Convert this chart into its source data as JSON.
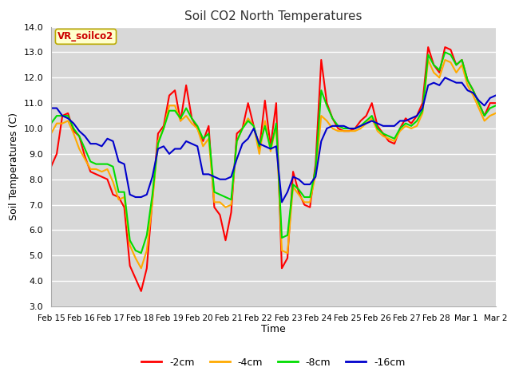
{
  "title": "Soil CO2 North Temperatures",
  "xlabel": "Time",
  "ylabel": "Soil Temperatures (C)",
  "ylim": [
    3.0,
    14.0
  ],
  "yticks": [
    3.0,
    4.0,
    5.0,
    6.0,
    7.0,
    8.0,
    9.0,
    10.0,
    11.0,
    12.0,
    13.0,
    14.0
  ],
  "x_labels": [
    "Feb 15",
    "Feb 16",
    "Feb 17",
    "Feb 18",
    "Feb 19",
    "Feb 20",
    "Feb 21",
    "Feb 22",
    "Feb 23",
    "Feb 24",
    "Feb 25",
    "Feb 26",
    "Feb 27",
    "Feb 28",
    "Mar 1",
    "Mar 2"
  ],
  "colors": {
    "-2cm": "#ff0000",
    "-4cm": "#ffaa00",
    "-8cm": "#00dd00",
    "-16cm": "#0000cc"
  },
  "legend_label": "VR_soilco2",
  "fig_background": "#ffffff",
  "plot_background": "#d8d8d8",
  "grid_color": "#ffffff",
  "line_width": 1.5,
  "series": {
    "-2cm": [
      8.5,
      9.0,
      10.5,
      10.6,
      9.9,
      9.7,
      8.9,
      8.3,
      8.2,
      8.1,
      8.0,
      7.4,
      7.3,
      6.9,
      4.6,
      4.1,
      3.6,
      4.5,
      7.2,
      9.8,
      10.1,
      11.3,
      11.5,
      10.3,
      11.7,
      10.4,
      10.0,
      9.5,
      10.1,
      6.9,
      6.6,
      5.6,
      6.7,
      9.8,
      10.0,
      11.0,
      10.1,
      9.2,
      11.1,
      9.3,
      11.0,
      4.5,
      4.9,
      8.3,
      7.5,
      7.0,
      6.9,
      8.6,
      12.7,
      11.0,
      10.4,
      10.0,
      9.9,
      9.9,
      10.0,
      10.3,
      10.5,
      11.0,
      10.1,
      9.8,
      9.5,
      9.4,
      10.0,
      10.4,
      10.2,
      10.5,
      11.0,
      13.2,
      12.5,
      12.2,
      13.2,
      13.1,
      12.5,
      12.7,
      11.9,
      11.5,
      11.0,
      10.5,
      11.0,
      11.0
    ],
    "-4cm": [
      9.8,
      10.2,
      10.2,
      10.3,
      9.8,
      9.2,
      8.8,
      8.4,
      8.4,
      8.3,
      8.4,
      7.9,
      7.2,
      7.3,
      5.4,
      4.9,
      4.5,
      5.2,
      7.1,
      9.5,
      10.0,
      10.9,
      10.9,
      10.3,
      10.5,
      10.2,
      10.0,
      9.3,
      9.6,
      7.1,
      7.1,
      6.9,
      7.0,
      9.5,
      10.0,
      10.4,
      10.1,
      9.0,
      10.3,
      9.1,
      10.1,
      5.2,
      5.1,
      7.7,
      7.4,
      7.1,
      7.1,
      8.2,
      10.5,
      10.3,
      10.0,
      9.9,
      9.9,
      9.9,
      9.9,
      10.0,
      10.2,
      10.4,
      9.9,
      9.7,
      9.6,
      9.5,
      9.9,
      10.1,
      10.0,
      10.1,
      10.6,
      12.7,
      12.2,
      12.0,
      12.7,
      12.6,
      12.2,
      12.5,
      11.7,
      11.3,
      10.8,
      10.3,
      10.5,
      10.6
    ],
    "-8cm": [
      10.2,
      10.5,
      10.5,
      10.5,
      10.0,
      9.7,
      9.2,
      8.7,
      8.6,
      8.6,
      8.6,
      8.5,
      7.5,
      7.5,
      5.6,
      5.2,
      5.1,
      5.8,
      7.4,
      9.4,
      10.0,
      10.7,
      10.7,
      10.4,
      10.8,
      10.4,
      10.1,
      9.6,
      9.8,
      7.5,
      7.4,
      7.3,
      7.2,
      9.5,
      10.0,
      10.3,
      10.1,
      9.3,
      10.1,
      9.2,
      10.2,
      5.7,
      5.8,
      7.8,
      7.6,
      7.3,
      7.3,
      8.4,
      11.5,
      10.9,
      10.4,
      10.1,
      10.0,
      10.0,
      10.0,
      10.1,
      10.3,
      10.5,
      10.0,
      9.8,
      9.7,
      9.6,
      10.0,
      10.2,
      10.1,
      10.3,
      10.7,
      12.9,
      12.5,
      12.3,
      13.0,
      12.9,
      12.5,
      12.7,
      11.9,
      11.5,
      11.0,
      10.5,
      10.8,
      10.9
    ],
    "-16cm": [
      10.8,
      10.8,
      10.5,
      10.4,
      10.2,
      9.9,
      9.7,
      9.4,
      9.4,
      9.3,
      9.6,
      9.5,
      8.7,
      8.6,
      7.4,
      7.3,
      7.3,
      7.4,
      8.1,
      9.2,
      9.3,
      9.0,
      9.2,
      9.2,
      9.5,
      9.4,
      9.3,
      8.2,
      8.2,
      8.1,
      8.0,
      8.0,
      8.1,
      8.8,
      9.4,
      9.6,
      10.0,
      9.4,
      9.3,
      9.2,
      9.3,
      7.1,
      7.5,
      8.1,
      8.0,
      7.8,
      7.8,
      8.1,
      9.5,
      10.0,
      10.1,
      10.1,
      10.1,
      10.0,
      10.0,
      10.1,
      10.2,
      10.3,
      10.2,
      10.1,
      10.1,
      10.1,
      10.3,
      10.3,
      10.4,
      10.5,
      10.8,
      11.7,
      11.8,
      11.7,
      12.0,
      11.9,
      11.8,
      11.8,
      11.5,
      11.4,
      11.1,
      10.9,
      11.2,
      11.3
    ]
  }
}
